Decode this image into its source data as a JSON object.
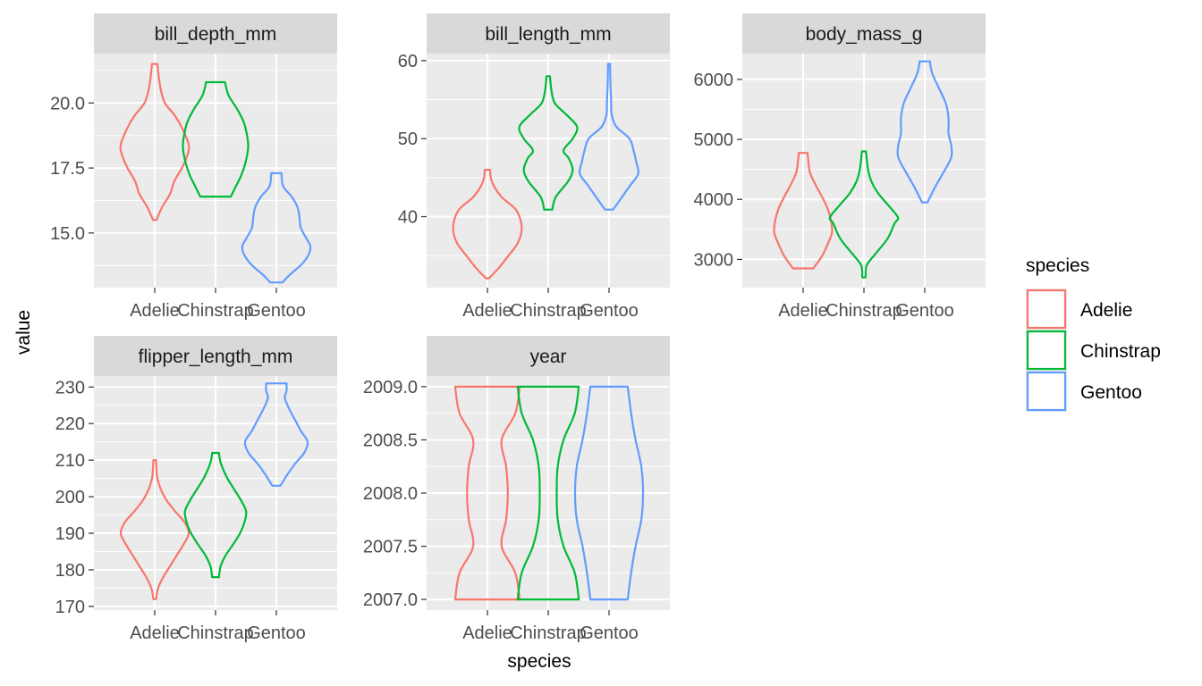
{
  "chart_data": {
    "type": "violin",
    "xlabel": "species",
    "ylabel": "value",
    "categories": [
      "Adelie",
      "Chinstrap",
      "Gentoo"
    ],
    "colors": {
      "Adelie": "#F8766D",
      "Chinstrap": "#00BA38",
      "Gentoo": "#619CFF"
    },
    "legend": {
      "title": "species",
      "position": "right",
      "entries": [
        "Adelie",
        "Chinstrap",
        "Gentoo"
      ]
    },
    "grid": true,
    "panels": [
      {
        "name": "bill_depth_mm",
        "ylim": [
          12.9,
          21.9
        ],
        "yticks": [
          15.0,
          17.5,
          20.0
        ],
        "ytick_labels": [
          "15.0",
          "17.5",
          "20.0"
        ],
        "violins": [
          {
            "species": "Adelie",
            "min": 15.5,
            "max": 21.5,
            "median": 18.4,
            "profile": [
              [
                15.5,
                0.05
              ],
              [
                16.0,
                0.22
              ],
              [
                16.5,
                0.45
              ],
              [
                17.0,
                0.58
              ],
              [
                17.5,
                0.8
              ],
              [
                18.0,
                0.96
              ],
              [
                18.4,
                1.0
              ],
              [
                19.0,
                0.82
              ],
              [
                19.5,
                0.6
              ],
              [
                20.0,
                0.3
              ],
              [
                20.5,
                0.18
              ],
              [
                21.0,
                0.12
              ],
              [
                21.5,
                0.08
              ]
            ]
          },
          {
            "species": "Chinstrap",
            "min": 16.4,
            "max": 20.8,
            "median": 18.4,
            "profile": [
              [
                16.4,
                0.45
              ],
              [
                16.8,
                0.6
              ],
              [
                17.2,
                0.75
              ],
              [
                17.7,
                0.88
              ],
              [
                18.3,
                0.96
              ],
              [
                18.8,
                0.92
              ],
              [
                19.3,
                0.82
              ],
              [
                19.8,
                0.62
              ],
              [
                20.3,
                0.38
              ],
              [
                20.8,
                0.28
              ]
            ]
          },
          {
            "species": "Gentoo",
            "min": 13.1,
            "max": 17.3,
            "median": 15.0,
            "profile": [
              [
                13.1,
                0.18
              ],
              [
                13.4,
                0.4
              ],
              [
                13.8,
                0.75
              ],
              [
                14.2,
                0.96
              ],
              [
                14.5,
                1.0
              ],
              [
                14.8,
                0.88
              ],
              [
                15.2,
                0.72
              ],
              [
                15.6,
                0.68
              ],
              [
                16.0,
                0.62
              ],
              [
                16.4,
                0.45
              ],
              [
                16.8,
                0.2
              ],
              [
                17.3,
                0.15
              ]
            ]
          }
        ]
      },
      {
        "name": "bill_length_mm",
        "ylim": [
          30.9,
          60.9
        ],
        "yticks": [
          40,
          50,
          60
        ],
        "ytick_labels": [
          "40",
          "50",
          "60"
        ],
        "violins": [
          {
            "species": "Adelie",
            "min": 32.1,
            "max": 46.0,
            "median": 38.8,
            "profile": [
              [
                32.1,
                0.05
              ],
              [
                33.5,
                0.35
              ],
              [
                35.0,
                0.62
              ],
              [
                36.5,
                0.88
              ],
              [
                38.0,
                1.0
              ],
              [
                39.5,
                0.98
              ],
              [
                41.0,
                0.82
              ],
              [
                42.5,
                0.42
              ],
              [
                44.0,
                0.18
              ],
              [
                45.0,
                0.1
              ],
              [
                46.0,
                0.08
              ]
            ]
          },
          {
            "species": "Chinstrap",
            "min": 40.9,
            "max": 58.0,
            "median": 49.5,
            "profile": [
              [
                40.9,
                0.12
              ],
              [
                42.5,
                0.22
              ],
              [
                44.5,
                0.58
              ],
              [
                46.0,
                0.72
              ],
              [
                47.5,
                0.6
              ],
              [
                48.5,
                0.45
              ],
              [
                50.0,
                0.72
              ],
              [
                51.5,
                0.85
              ],
              [
                53.0,
                0.55
              ],
              [
                54.5,
                0.2
              ],
              [
                56.0,
                0.1
              ],
              [
                58.0,
                0.05
              ]
            ]
          },
          {
            "species": "Gentoo",
            "min": 40.9,
            "max": 59.6,
            "median": 47.3,
            "profile": [
              [
                40.9,
                0.12
              ],
              [
                42.5,
                0.38
              ],
              [
                44.0,
                0.62
              ],
              [
                45.5,
                0.86
              ],
              [
                47.0,
                0.8
              ],
              [
                48.5,
                0.72
              ],
              [
                50.0,
                0.6
              ],
              [
                51.5,
                0.22
              ],
              [
                53.0,
                0.08
              ],
              [
                55.0,
                0.06
              ],
              [
                57.0,
                0.04
              ],
              [
                59.6,
                0.03
              ]
            ]
          }
        ]
      },
      {
        "name": "body_mass_g",
        "ylim": [
          2530,
          6430
        ],
        "yticks": [
          3000,
          4000,
          5000,
          6000
        ],
        "ytick_labels": [
          "3000",
          "4000",
          "5000",
          "6000"
        ],
        "violins": [
          {
            "species": "Adelie",
            "min": 2850,
            "max": 4775,
            "median": 3700,
            "profile": [
              [
                2850,
                0.3
              ],
              [
                3050,
                0.55
              ],
              [
                3250,
                0.72
              ],
              [
                3450,
                0.85
              ],
              [
                3650,
                0.82
              ],
              [
                3850,
                0.72
              ],
              [
                4050,
                0.55
              ],
              [
                4250,
                0.36
              ],
              [
                4450,
                0.2
              ],
              [
                4650,
                0.15
              ],
              [
                4775,
                0.13
              ]
            ]
          },
          {
            "species": "Chinstrap",
            "min": 2700,
            "max": 4800,
            "median": 3700,
            "profile": [
              [
                2700,
                0.05
              ],
              [
                2900,
                0.08
              ],
              [
                3100,
                0.35
              ],
              [
                3350,
                0.7
              ],
              [
                3600,
                0.9
              ],
              [
                3700,
                1.0
              ],
              [
                3900,
                0.72
              ],
              [
                4100,
                0.42
              ],
              [
                4300,
                0.22
              ],
              [
                4500,
                0.12
              ],
              [
                4800,
                0.06
              ]
            ]
          },
          {
            "species": "Gentoo",
            "min": 3950,
            "max": 6300,
            "median": 5000,
            "profile": [
              [
                3950,
                0.08
              ],
              [
                4200,
                0.3
              ],
              [
                4450,
                0.55
              ],
              [
                4700,
                0.78
              ],
              [
                4900,
                0.78
              ],
              [
                5100,
                0.7
              ],
              [
                5350,
                0.7
              ],
              [
                5600,
                0.62
              ],
              [
                5850,
                0.42
              ],
              [
                6100,
                0.22
              ],
              [
                6300,
                0.15
              ]
            ]
          }
        ]
      },
      {
        "name": "flipper_length_mm",
        "ylim": [
          169,
          233
        ],
        "yticks": [
          170,
          180,
          190,
          200,
          210,
          220,
          230
        ],
        "ytick_labels": [
          "170",
          "180",
          "190",
          "200",
          "210",
          "220",
          "230"
        ],
        "violins": [
          {
            "species": "Adelie",
            "min": 172,
            "max": 210,
            "median": 190,
            "profile": [
              [
                172,
                0.04
              ],
              [
                175,
                0.1
              ],
              [
                178,
                0.25
              ],
              [
                181,
                0.45
              ],
              [
                184,
                0.65
              ],
              [
                187,
                0.85
              ],
              [
                190,
                1.0
              ],
              [
                193,
                0.88
              ],
              [
                196,
                0.6
              ],
              [
                199,
                0.35
              ],
              [
                202,
                0.18
              ],
              [
                205,
                0.08
              ],
              [
                208,
                0.05
              ],
              [
                210,
                0.04
              ]
            ]
          },
          {
            "species": "Chinstrap",
            "min": 178,
            "max": 212,
            "median": 196,
            "profile": [
              [
                178,
                0.1
              ],
              [
                181,
                0.15
              ],
              [
                184,
                0.3
              ],
              [
                187,
                0.52
              ],
              [
                190,
                0.72
              ],
              [
                193,
                0.85
              ],
              [
                196,
                0.9
              ],
              [
                199,
                0.75
              ],
              [
                202,
                0.55
              ],
              [
                205,
                0.35
              ],
              [
                208,
                0.2
              ],
              [
                210,
                0.13
              ],
              [
                212,
                0.1
              ]
            ]
          },
          {
            "species": "Gentoo",
            "min": 203,
            "max": 231,
            "median": 216,
            "profile": [
              [
                203,
                0.12
              ],
              [
                206,
                0.32
              ],
              [
                209,
                0.55
              ],
              [
                212,
                0.82
              ],
              [
                215,
                0.92
              ],
              [
                218,
                0.72
              ],
              [
                221,
                0.55
              ],
              [
                224,
                0.38
              ],
              [
                227,
                0.25
              ],
              [
                229,
                0.3
              ],
              [
                231,
                0.3
              ]
            ]
          }
        ]
      },
      {
        "name": "year",
        "ylim": [
          2006.9,
          2009.1
        ],
        "yticks": [
          2007.0,
          2007.5,
          2008.0,
          2008.5,
          2009.0
        ],
        "ytick_labels": [
          "2007.0",
          "2007.5",
          "2008.0",
          "2008.5",
          "2009.0"
        ],
        "violins": [
          {
            "species": "Adelie",
            "min": 2007.0,
            "max": 2009.0,
            "median": 2008.0,
            "profile": [
              [
                2007.0,
                0.95
              ],
              [
                2007.25,
                0.82
              ],
              [
                2007.5,
                0.42
              ],
              [
                2007.75,
                0.55
              ],
              [
                2008.0,
                0.6
              ],
              [
                2008.25,
                0.55
              ],
              [
                2008.5,
                0.42
              ],
              [
                2008.75,
                0.82
              ],
              [
                2009.0,
                0.95
              ]
            ]
          },
          {
            "species": "Chinstrap",
            "min": 2007.0,
            "max": 2009.0,
            "median": 2008.0,
            "profile": [
              [
                2007.0,
                0.9
              ],
              [
                2007.25,
                0.78
              ],
              [
                2007.5,
                0.45
              ],
              [
                2007.75,
                0.28
              ],
              [
                2008.0,
                0.25
              ],
              [
                2008.25,
                0.28
              ],
              [
                2008.5,
                0.45
              ],
              [
                2008.75,
                0.78
              ],
              [
                2009.0,
                0.9
              ]
            ]
          },
          {
            "species": "Gentoo",
            "min": 2007.0,
            "max": 2009.0,
            "median": 2008.0,
            "profile": [
              [
                2007.0,
                0.55
              ],
              [
                2007.25,
                0.65
              ],
              [
                2007.5,
                0.78
              ],
              [
                2007.75,
                0.95
              ],
              [
                2008.0,
                1.0
              ],
              [
                2008.25,
                0.95
              ],
              [
                2008.5,
                0.78
              ],
              [
                2008.75,
                0.65
              ],
              [
                2009.0,
                0.55
              ]
            ]
          }
        ]
      }
    ]
  }
}
